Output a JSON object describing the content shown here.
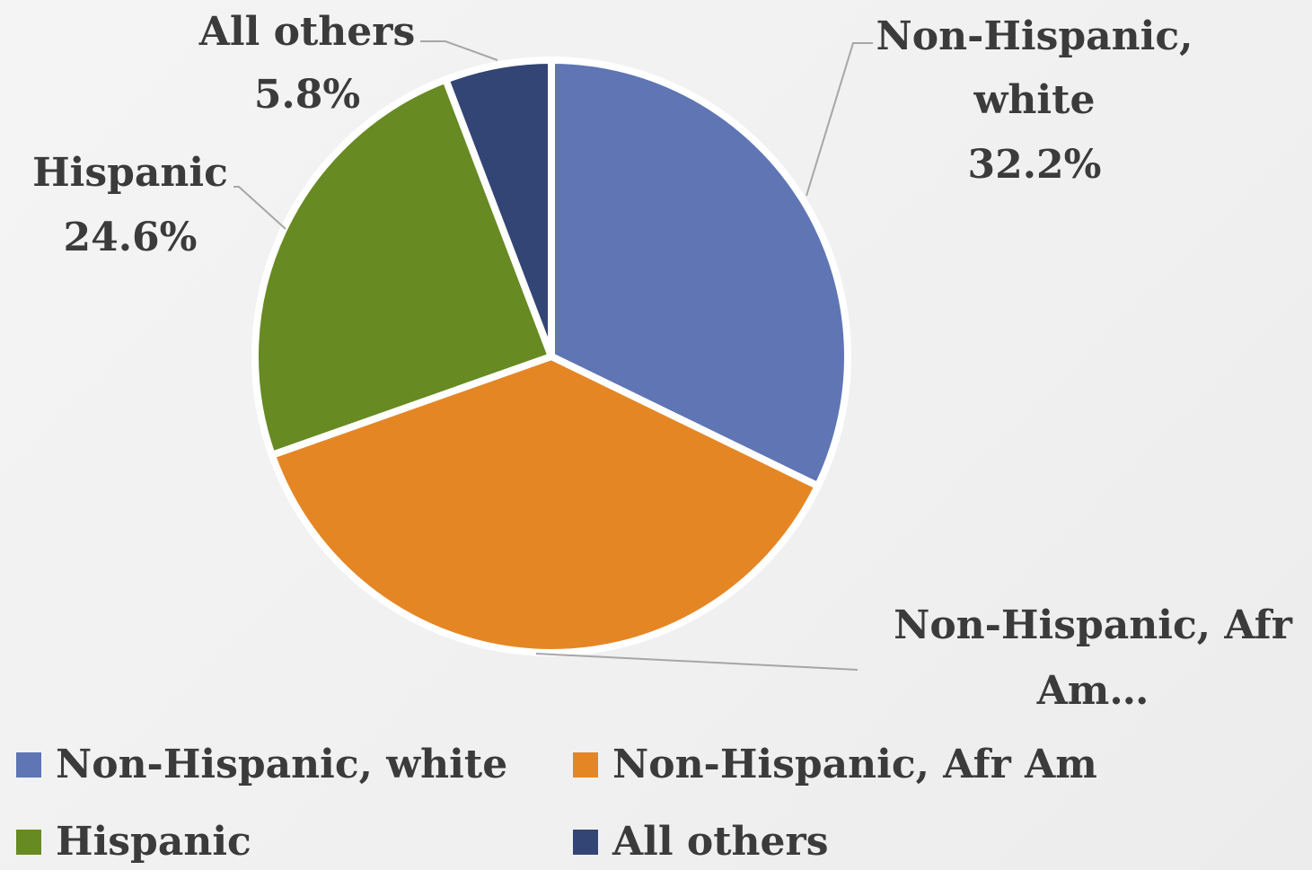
{
  "chart_data": {
    "type": "pie",
    "categories": [
      "Non-Hispanic, white",
      "Non-Hispanic, Afr Am",
      "Hispanic",
      "All others"
    ],
    "values": [
      32.2,
      37.4,
      24.6,
      5.8
    ],
    "colors": [
      "#5f75b4",
      "#e58625",
      "#678a23",
      "#334574"
    ],
    "data_labels": [
      [
        "Non-Hispanic,",
        "white",
        "32.2%"
      ],
      [
        "Non-Hispanic, Afr",
        "Am…"
      ],
      [
        "Hispanic",
        "24.6%"
      ],
      [
        "All others",
        "5.8%"
      ]
    ],
    "legend_labels": [
      "Non-Hispanic, white",
      "Non-Hispanic, Afr Am",
      "Hispanic",
      "All others"
    ],
    "legend_position": "bottom"
  }
}
